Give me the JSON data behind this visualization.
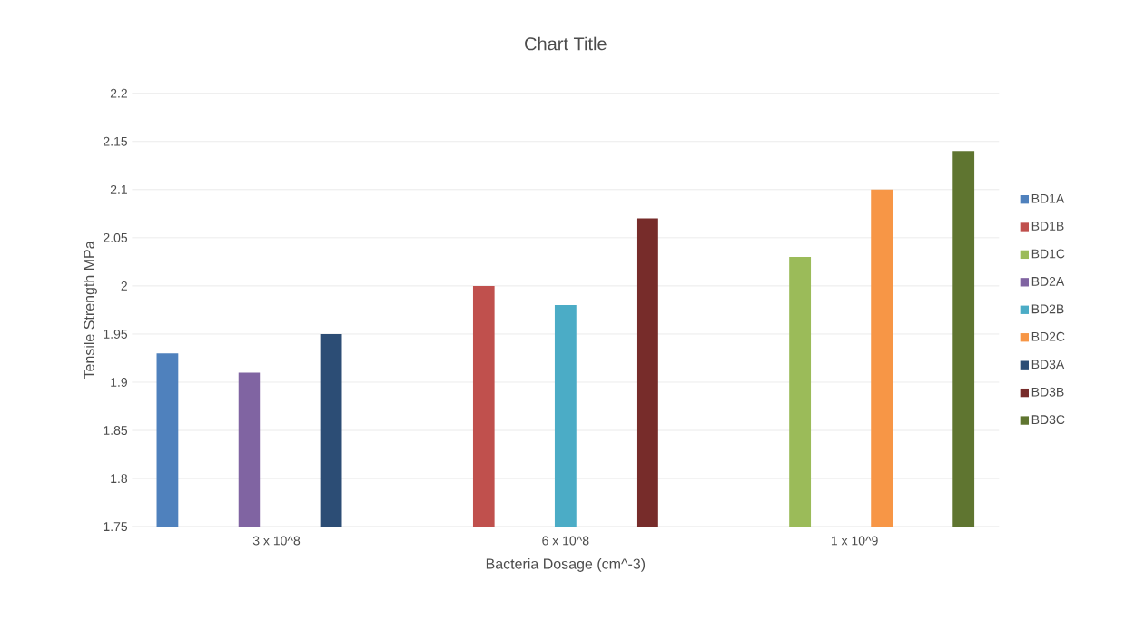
{
  "chart_data": {
    "type": "bar",
    "title": "Chart Title",
    "xlabel": "Bacteria Dosage (cm^-3)",
    "ylabel": "Tensile Strength MPa",
    "categories": [
      "3 x 10^8",
      "6 x 10^8",
      "1 x 10^9"
    ],
    "series": [
      {
        "name": "BD1A",
        "color": "#4f81bd",
        "values": [
          1.93,
          null,
          null
        ]
      },
      {
        "name": "BD1B",
        "color": "#c0504d",
        "values": [
          null,
          2.0,
          null
        ]
      },
      {
        "name": "BD1C",
        "color": "#9bbb59",
        "values": [
          null,
          null,
          2.03
        ]
      },
      {
        "name": "BD2A",
        "color": "#8064a2",
        "values": [
          1.91,
          null,
          null
        ]
      },
      {
        "name": "BD2B",
        "color": "#4bacc6",
        "values": [
          null,
          1.98,
          null
        ]
      },
      {
        "name": "BD2C",
        "color": "#f79646",
        "values": [
          null,
          null,
          2.1
        ]
      },
      {
        "name": "BD3A",
        "color": "#2c4d75",
        "values": [
          1.95,
          null,
          null
        ]
      },
      {
        "name": "BD3B",
        "color": "#772c2a",
        "values": [
          null,
          2.07,
          null
        ]
      },
      {
        "name": "BD3C",
        "color": "#5f7530",
        "values": [
          null,
          null,
          2.14
        ]
      }
    ],
    "ylim": [
      1.75,
      2.2
    ],
    "yticks": [
      1.75,
      1.8,
      1.85,
      1.9,
      1.95,
      2,
      2.05,
      2.1,
      2.15,
      2.2
    ],
    "grid": "y",
    "legend": "right"
  }
}
